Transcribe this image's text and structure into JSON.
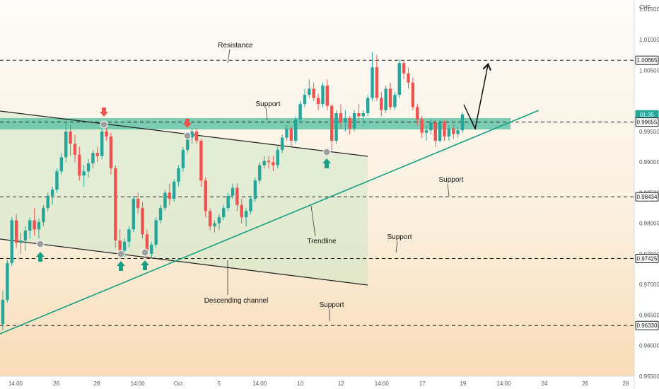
{
  "chart_data": {
    "type": "candlestick",
    "currency_label": "CHF",
    "y_range": [
      0.955,
      1.0165
    ],
    "y_ticks": [
      "1.01500",
      "1.01000",
      "1.00500",
      "0.99500",
      "0.99000",
      "0.98500",
      "0.98000",
      "0.97500",
      "0.97000",
      "0.96500",
      "0.96000",
      "0.95500"
    ],
    "y_tick_values": [
      1.015,
      1.01,
      1.005,
      0.995,
      0.99,
      0.985,
      0.98,
      0.975,
      0.97,
      0.965,
      0.96,
      0.955
    ],
    "x_ticks": [
      "14:00",
      "26",
      "28",
      "14:00",
      "Oct",
      "5",
      "14:00",
      "10",
      "12",
      "14:00",
      "17",
      "19",
      "14:00",
      "24",
      "26",
      "28"
    ],
    "price_badges": [
      {
        "label": "1.00665",
        "value": 1.00665,
        "style": "level"
      },
      {
        "label": "01:35",
        "value": 0.99775,
        "style": "current"
      },
      {
        "label": "0.99655",
        "value": 0.99655,
        "style": "level"
      },
      {
        "label": "0.98434",
        "value": 0.98434,
        "style": "level"
      },
      {
        "label": "0.97425",
        "value": 0.97425,
        "style": "level"
      },
      {
        "label": "0.96330",
        "value": 0.9633,
        "style": "level"
      }
    ],
    "horizontal_levels": [
      1.00665,
      0.99655,
      0.98434,
      0.97425,
      0.9633
    ],
    "support_zone": [
      0.99525,
      0.9973
    ],
    "annotations": [
      {
        "text": "Resistance",
        "role": "resistance"
      },
      {
        "text": "Support",
        "role": "zone-support"
      },
      {
        "text": "Support",
        "role": "support-0.98434"
      },
      {
        "text": "Trendline",
        "role": "trendline"
      },
      {
        "text": "Support",
        "role": "support-0.97425"
      },
      {
        "text": "Descending channel",
        "role": "channel"
      },
      {
        "text": "Support",
        "role": "support-0.96330"
      }
    ],
    "candles": [
      [
        0.9635,
        0.969,
        0.9625,
        0.9675
      ],
      [
        0.9675,
        0.974,
        0.967,
        0.9735
      ],
      [
        0.9735,
        0.981,
        0.973,
        0.9805
      ],
      [
        0.9805,
        0.9815,
        0.976,
        0.9768
      ],
      [
        0.9768,
        0.9785,
        0.975,
        0.9772
      ],
      [
        0.9772,
        0.9795,
        0.9755,
        0.9788
      ],
      [
        0.9788,
        0.981,
        0.9775,
        0.9805
      ],
      [
        0.9805,
        0.9825,
        0.978,
        0.979
      ],
      [
        0.979,
        0.9808,
        0.9775,
        0.9802
      ],
      [
        0.9802,
        0.983,
        0.9795,
        0.9825
      ],
      [
        0.9825,
        0.985,
        0.982,
        0.9845
      ],
      [
        0.9845,
        0.986,
        0.983,
        0.9855
      ],
      [
        0.9855,
        0.989,
        0.985,
        0.9885
      ],
      [
        0.9885,
        0.9915,
        0.988,
        0.9908
      ],
      [
        0.9908,
        0.9965,
        0.99,
        0.995
      ],
      [
        0.995,
        0.996,
        0.991,
        0.993
      ],
      [
        0.993,
        0.9945,
        0.99,
        0.9912
      ],
      [
        0.9912,
        0.9925,
        0.987,
        0.9878
      ],
      [
        0.9878,
        0.9895,
        0.986,
        0.9885
      ],
      [
        0.9885,
        0.9905,
        0.9875,
        0.9898
      ],
      [
        0.9898,
        0.992,
        0.989,
        0.9915
      ],
      [
        0.9915,
        0.9925,
        0.99,
        0.991
      ],
      [
        0.991,
        0.9958,
        0.9905,
        0.995
      ],
      [
        0.995,
        0.9966,
        0.9935,
        0.9942
      ],
      [
        0.9942,
        0.9948,
        0.988,
        0.989
      ],
      [
        0.989,
        0.9895,
        0.976,
        0.9772
      ],
      [
        0.9772,
        0.979,
        0.9742,
        0.9755
      ],
      [
        0.9755,
        0.9775,
        0.9745,
        0.977
      ],
      [
        0.977,
        0.9795,
        0.976,
        0.979
      ],
      [
        0.979,
        0.9845,
        0.9785,
        0.984
      ],
      [
        0.984,
        0.985,
        0.9815,
        0.9825
      ],
      [
        0.9825,
        0.9835,
        0.9775,
        0.9782
      ],
      [
        0.9782,
        0.979,
        0.9742,
        0.975
      ],
      [
        0.975,
        0.977,
        0.9745,
        0.9765
      ],
      [
        0.9765,
        0.981,
        0.976,
        0.9805
      ],
      [
        0.9805,
        0.983,
        0.98,
        0.9825
      ],
      [
        0.9825,
        0.9855,
        0.982,
        0.985
      ],
      [
        0.985,
        0.9865,
        0.983,
        0.984
      ],
      [
        0.984,
        0.9872,
        0.9835,
        0.9868
      ],
      [
        0.9868,
        0.9895,
        0.986,
        0.989
      ],
      [
        0.989,
        0.9925,
        0.9885,
        0.992
      ],
      [
        0.992,
        0.9945,
        0.9915,
        0.994
      ],
      [
        0.994,
        0.9955,
        0.993,
        0.995
      ],
      [
        0.995,
        0.9955,
        0.993,
        0.9935
      ],
      [
        0.9935,
        0.9938,
        0.986,
        0.987
      ],
      [
        0.987,
        0.9875,
        0.981,
        0.982
      ],
      [
        0.982,
        0.9825,
        0.9788,
        0.9795
      ],
      [
        0.9795,
        0.9805,
        0.9785,
        0.98
      ],
      [
        0.98,
        0.9815,
        0.979,
        0.981
      ],
      [
        0.981,
        0.983,
        0.9805,
        0.9825
      ],
      [
        0.9825,
        0.985,
        0.982,
        0.9845
      ],
      [
        0.9845,
        0.9865,
        0.984,
        0.9858
      ],
      [
        0.9858,
        0.9865,
        0.982,
        0.983
      ],
      [
        0.983,
        0.984,
        0.98,
        0.981
      ],
      [
        0.981,
        0.9825,
        0.9795,
        0.982
      ],
      [
        0.982,
        0.9845,
        0.9815,
        0.984
      ],
      [
        0.984,
        0.9875,
        0.9835,
        0.987
      ],
      [
        0.987,
        0.99,
        0.9865,
        0.9895
      ],
      [
        0.9895,
        0.991,
        0.989,
        0.9902
      ],
      [
        0.9902,
        0.991,
        0.989,
        0.99
      ],
      [
        0.99,
        0.991,
        0.9885,
        0.9895
      ],
      [
        0.9895,
        0.9925,
        0.989,
        0.992
      ],
      [
        0.992,
        0.9945,
        0.9915,
        0.994
      ],
      [
        0.994,
        0.996,
        0.9935,
        0.9955
      ],
      [
        0.9955,
        0.9958,
        0.9925,
        0.9935
      ],
      [
        0.9935,
        0.9975,
        0.993,
        0.997
      ],
      [
        0.997,
        1.0,
        0.9965,
        0.9995
      ],
      [
        0.9995,
        1.002,
        0.999,
        1.001
      ],
      [
        1.001,
        1.0035,
        1.0005,
        1.002
      ],
      [
        1.002,
        1.003,
        1.0,
        1.0005
      ],
      [
        1.0005,
        1.0012,
        0.9985,
        0.9995
      ],
      [
        0.9995,
        1.003,
        0.999,
        1.0025
      ],
      [
        1.0025,
        1.0035,
        0.9985,
        0.9992
      ],
      [
        0.9992,
        0.9995,
        0.992,
        0.9935
      ],
      [
        0.9935,
        0.9985,
        0.993,
        0.998
      ],
      [
        0.998,
        0.9995,
        0.9955,
        0.9965
      ],
      [
        0.9965,
        0.9985,
        0.995,
        0.9972
      ],
      [
        0.9972,
        0.9975,
        0.9945,
        0.9955
      ],
      [
        0.9955,
        0.9985,
        0.995,
        0.998
      ],
      [
        0.998,
        0.9995,
        0.997,
        0.9975
      ],
      [
        0.9975,
        0.9985,
        0.996,
        0.998
      ],
      [
        0.998,
        1.001,
        0.9975,
        1.0005
      ],
      [
        1.0005,
        1.008,
        1.0,
        1.0055
      ],
      [
        1.0055,
        1.0075,
        1.0,
        1.0005
      ],
      [
        1.0005,
        1.0015,
        0.9975,
        0.9985
      ],
      [
        0.9985,
        1.0025,
        0.998,
        1.002
      ],
      [
        1.002,
        1.003,
        0.9985,
        0.999
      ],
      [
        0.999,
        1.0015,
        0.9985,
        1.001
      ],
      [
        1.001,
        1.0068,
        1.0005,
        1.0062
      ],
      [
        1.0062,
        1.0065,
        1.0035,
        1.0045
      ],
      [
        1.0045,
        1.0055,
        1.002,
        1.003
      ],
      [
        1.003,
        1.0038,
        0.9985,
        0.999
      ],
      [
        0.999,
        0.9995,
        0.996,
        0.997
      ],
      [
        0.997,
        0.9975,
        0.994,
        0.9948
      ],
      [
        0.9948,
        0.996,
        0.9935,
        0.9952
      ],
      [
        0.9952,
        0.997,
        0.9945,
        0.9965
      ],
      [
        0.9965,
        0.9968,
        0.9925,
        0.9935
      ],
      [
        0.9935,
        0.997,
        0.9932,
        0.9965
      ],
      [
        0.9965,
        0.997,
        0.9935,
        0.9942
      ],
      [
        0.9942,
        0.996,
        0.9935,
        0.9955
      ],
      [
        0.9955,
        0.9962,
        0.9938,
        0.9946
      ],
      [
        0.9946,
        0.9958,
        0.994,
        0.9952
      ],
      [
        0.9952,
        0.9982,
        0.9948,
        0.9978
      ]
    ]
  }
}
